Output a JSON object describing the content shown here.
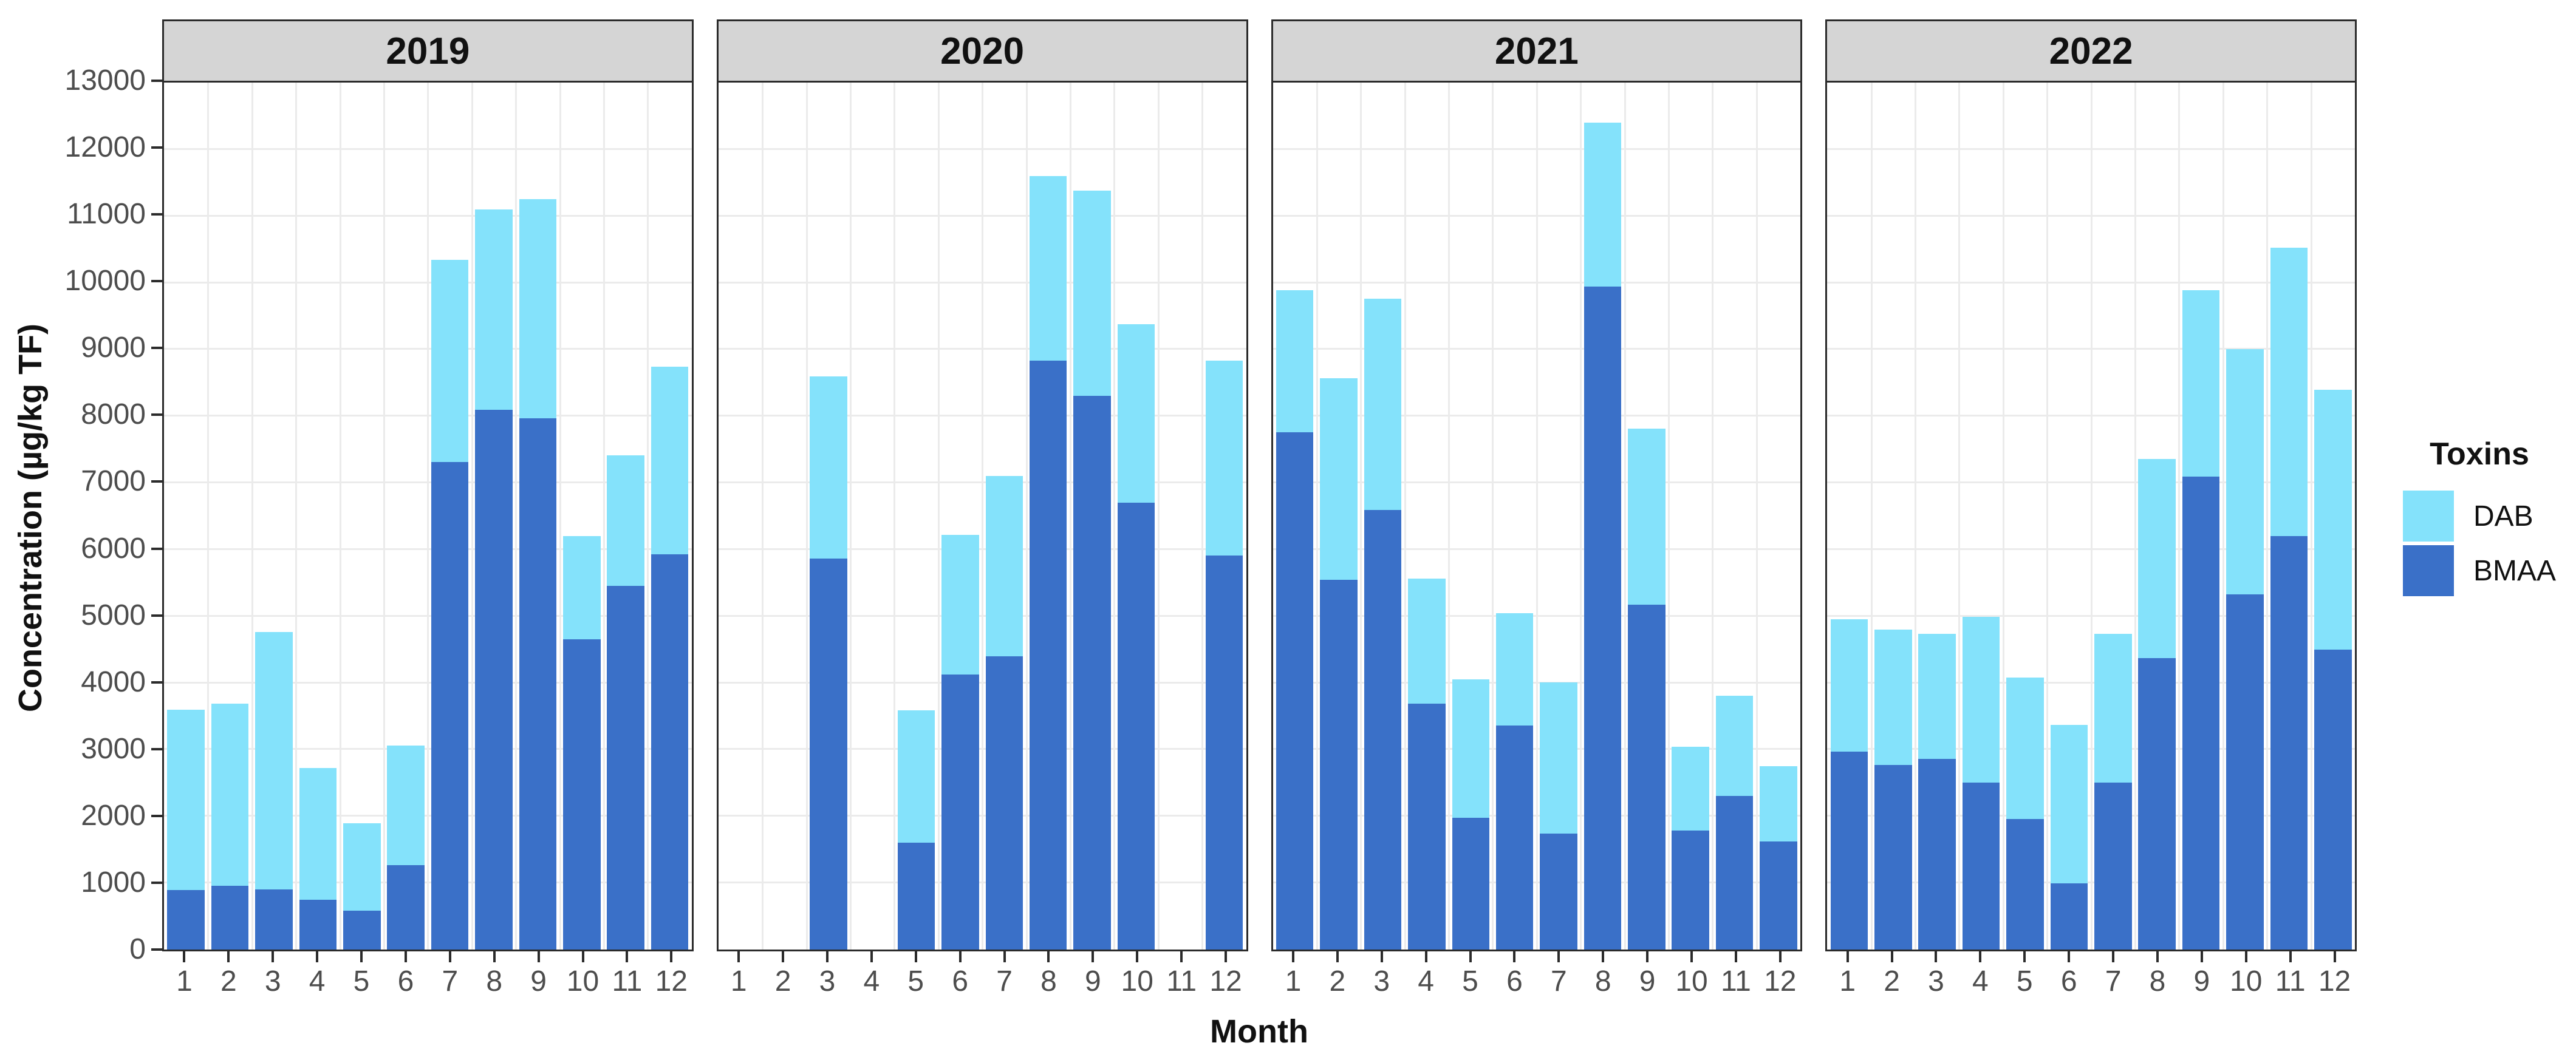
{
  "chart_data": {
    "type": "bar",
    "stacked": true,
    "title": "",
    "xlabel": "Month",
    "ylabel": "Concentration (µg/kg TF)",
    "legend_title": "Toxins",
    "legend_position": "right",
    "grid": true,
    "ylim": [
      0,
      13000
    ],
    "yticks": [
      0,
      1000,
      2000,
      3000,
      4000,
      5000,
      6000,
      7000,
      8000,
      9000,
      10000,
      11000,
      12000,
      13000
    ],
    "categories": [
      "1",
      "2",
      "3",
      "4",
      "5",
      "6",
      "7",
      "8",
      "9",
      "10",
      "11",
      "12"
    ],
    "stack_order_bottom_to_top": [
      "BMAA",
      "DAB"
    ],
    "series": [
      {
        "name": "DAB",
        "color": "#84e2fb"
      },
      {
        "name": "BMAA",
        "color": "#3a70c8"
      }
    ],
    "facets": [
      {
        "label": "2019",
        "BMAA": [
          890,
          960,
          900,
          750,
          580,
          1270,
          7310,
          8090,
          7970,
          4650,
          5450,
          5930
        ],
        "DAB": [
          2710,
          2730,
          3860,
          1970,
          1310,
          1790,
          3030,
          3010,
          3280,
          1550,
          1960,
          2810
        ]
      },
      {
        "label": "2020",
        "BMAA": [
          0,
          0,
          5860,
          0,
          1600,
          4120,
          4400,
          8830,
          8300,
          6700,
          0,
          5910
        ],
        "DAB": [
          0,
          0,
          2730,
          0,
          1990,
          2100,
          2700,
          2770,
          3080,
          2680,
          0,
          2920
        ]
      },
      {
        "label": "2021",
        "BMAA": [
          7760,
          5540,
          6590,
          3690,
          1980,
          3360,
          1740,
          9940,
          5170,
          1780,
          2300,
          1620
        ],
        "DAB": [
          2130,
          3030,
          3170,
          1870,
          2070,
          1680,
          2270,
          2460,
          2640,
          1260,
          1510,
          1130
        ]
      },
      {
        "label": "2022",
        "BMAA": [
          2970,
          2770,
          2860,
          2500,
          1960,
          990,
          2500,
          4370,
          7090,
          5330,
          6200,
          4500
        ],
        "DAB": [
          1980,
          2030,
          1870,
          2490,
          2120,
          2380,
          2230,
          2990,
          2800,
          3670,
          4320,
          3890
        ]
      }
    ]
  },
  "theme": {
    "strip_background": "#d5d5d5",
    "panel_border": "#2b2b2b",
    "gridline_color": "#ebebeb",
    "tick_label_color": "#4d4d4d",
    "background": "#ffffff"
  }
}
